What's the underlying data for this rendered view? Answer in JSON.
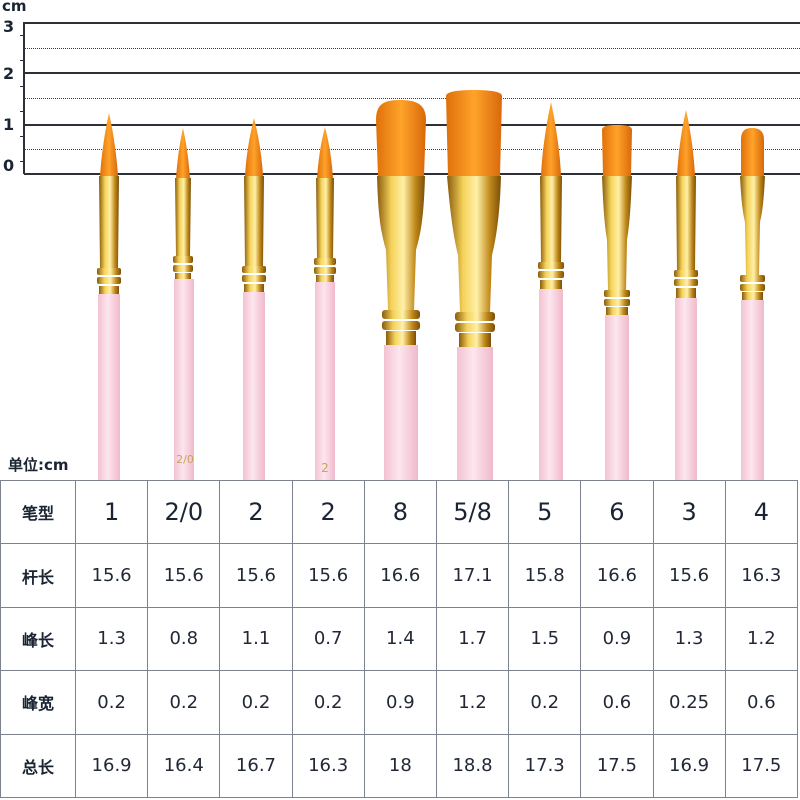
{
  "ruler": {
    "unit": "cm",
    "labels": [
      "3",
      "2",
      "1",
      "0"
    ]
  },
  "unit_label": "单位:cm",
  "brush_marks": [
    "2/0",
    "2"
  ],
  "colors": {
    "bristle": "#f08a12",
    "ferrule": "#c99a1c",
    "handle": "#f8d3de"
  },
  "table": {
    "rows": [
      {
        "header": "笔型",
        "values": [
          "1",
          "2/0",
          "2",
          "2",
          "8",
          "5/8",
          "5",
          "6",
          "3",
          "4"
        ]
      },
      {
        "header": "杆长",
        "values": [
          "15.6",
          "15.6",
          "15.6",
          "15.6",
          "16.6",
          "17.1",
          "15.8",
          "16.6",
          "15.6",
          "16.3"
        ]
      },
      {
        "header": "峰长",
        "values": [
          "1.3",
          "0.8",
          "1.1",
          "0.7",
          "1.4",
          "1.7",
          "1.5",
          "0.9",
          "1.3",
          "1.2"
        ]
      },
      {
        "header": "峰宽",
        "values": [
          "0.2",
          "0.2",
          "0.2",
          "0.2",
          "0.9",
          "1.2",
          "0.2",
          "0.6",
          "0.25",
          "0.6"
        ]
      },
      {
        "header": "总长",
        "values": [
          "16.9",
          "16.4",
          "16.7",
          "16.3",
          "18",
          "18.8",
          "17.3",
          "17.5",
          "16.9",
          "17.5"
        ]
      }
    ]
  }
}
